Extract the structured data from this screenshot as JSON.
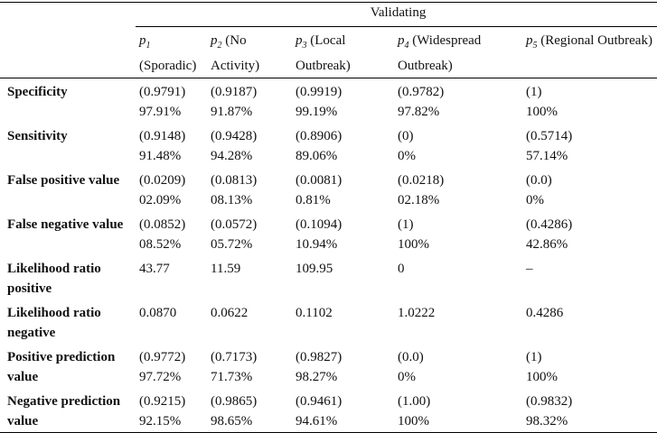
{
  "table": {
    "group_header": "Validating",
    "columns": [
      {
        "symbol": "p",
        "index": "1",
        "name": "(Sporadic)"
      },
      {
        "symbol": "p",
        "index": "2",
        "name": "(No Activity)"
      },
      {
        "symbol": "p",
        "index": "3",
        "name": "(Local Outbreak)"
      },
      {
        "symbol": "p",
        "index": "4",
        "name": "(Widespread Outbreak)"
      },
      {
        "symbol": "p",
        "index": "5",
        "name": "(Regional Outbreak)"
      }
    ],
    "rows": [
      {
        "label": "Specificity",
        "cells": [
          [
            "(0.9791)",
            "97.91%"
          ],
          [
            "(0.9187)",
            "91.87%"
          ],
          [
            "(0.9919)",
            "99.19%"
          ],
          [
            "(0.9782)",
            "97.82%"
          ],
          [
            "(1)",
            "100%"
          ]
        ]
      },
      {
        "label": "Sensitivity",
        "cells": [
          [
            "(0.9148)",
            "91.48%"
          ],
          [
            "(0.9428)",
            "94.28%"
          ],
          [
            "(0.8906)",
            "89.06%"
          ],
          [
            "(0)",
            "0%"
          ],
          [
            "(0.5714)",
            "57.14%"
          ]
        ]
      },
      {
        "label": "False positive value",
        "cells": [
          [
            "(0.0209)",
            "02.09%"
          ],
          [
            "(0.0813)",
            "08.13%"
          ],
          [
            "(0.0081)",
            "0.81%"
          ],
          [
            "(0.0218)",
            "02.18%"
          ],
          [
            "(0.0)",
            "0%"
          ]
        ]
      },
      {
        "label": "False negative value",
        "cells": [
          [
            "(0.0852)",
            "08.52%"
          ],
          [
            "(0.0572)",
            "05.72%"
          ],
          [
            "(0.1094)",
            "10.94%"
          ],
          [
            "(1)",
            "100%"
          ],
          [
            "(0.4286)",
            "42.86%"
          ]
        ]
      },
      {
        "label": "Likelihood ratio positive",
        "cells": [
          [
            "43.77"
          ],
          [
            "11.59"
          ],
          [
            "109.95"
          ],
          [
            "0"
          ],
          [
            "–"
          ]
        ]
      },
      {
        "label": "Likelihood ratio negative",
        "cells": [
          [
            "0.0870"
          ],
          [
            "0.0622"
          ],
          [
            "0.1102"
          ],
          [
            "1.0222"
          ],
          [
            "0.4286"
          ]
        ]
      },
      {
        "label": "Positive prediction value",
        "cells": [
          [
            "(0.9772)",
            "97.72%"
          ],
          [
            "(0.7173)",
            "71.73%"
          ],
          [
            "(0.9827)",
            "98.27%"
          ],
          [
            "(0.0)",
            "0%"
          ],
          [
            "(1)",
            "100%"
          ]
        ]
      },
      {
        "label": "Negative prediction value",
        "cells": [
          [
            "(0.9215)",
            "92.15%"
          ],
          [
            "(0.9865)",
            "98.65%"
          ],
          [
            "(0.9461)",
            "94.61%"
          ],
          [
            "(1.00)",
            "100%"
          ],
          [
            "(0.9832)",
            "98.32%"
          ]
        ]
      }
    ]
  }
}
